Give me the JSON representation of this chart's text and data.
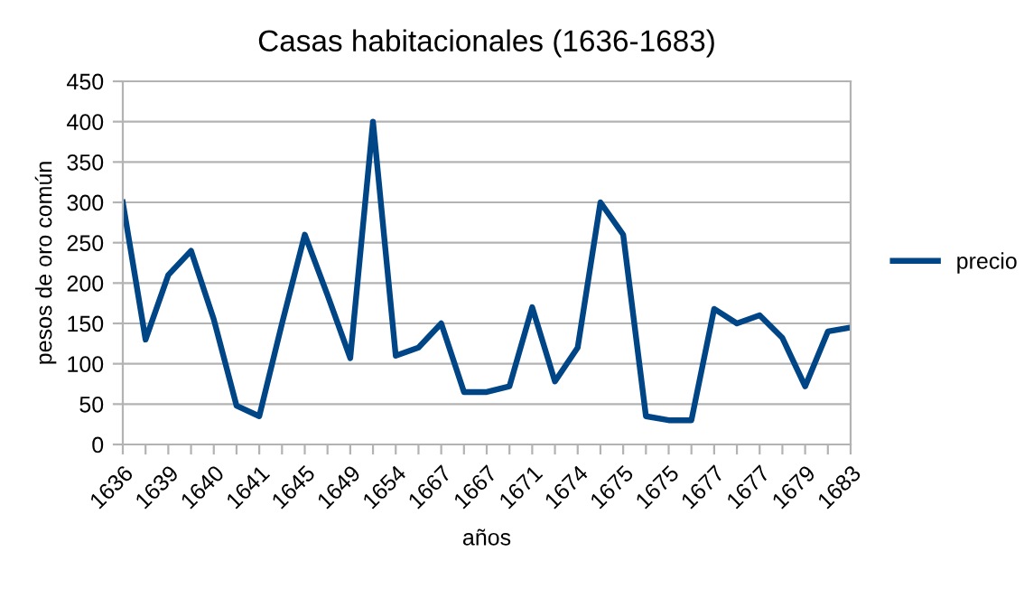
{
  "chart_data": {
    "type": "line",
    "title": "Casas habitacionales (1636-1683)",
    "xlabel": "años",
    "ylabel": "pesos de oro común",
    "categories": [
      "1636",
      null,
      "1639",
      null,
      "1640",
      null,
      "1641",
      null,
      "1645",
      null,
      "1649",
      null,
      "1654",
      null,
      "1667",
      null,
      "1667",
      null,
      "1671",
      null,
      "1674",
      null,
      "1675",
      null,
      "1675",
      null,
      "1677",
      null,
      "1677",
      null,
      "1679",
      null,
      "1683"
    ],
    "series": [
      {
        "name": "precio",
        "color": "#004586",
        "values": [
          300,
          130,
          210,
          240,
          155,
          48,
          35,
          150,
          260,
          185,
          107,
          400,
          110,
          120,
          150,
          65,
          65,
          72,
          170,
          78,
          120,
          300,
          260,
          35,
          30,
          30,
          168,
          150,
          160,
          132,
          72,
          140,
          145
        ]
      }
    ],
    "ylim": [
      0,
      450
    ],
    "yticks": [
      0,
      50,
      100,
      150,
      200,
      250,
      300,
      350,
      400,
      450
    ],
    "grid": "y",
    "legend": "right",
    "marker": "none",
    "line_style": "solid"
  }
}
